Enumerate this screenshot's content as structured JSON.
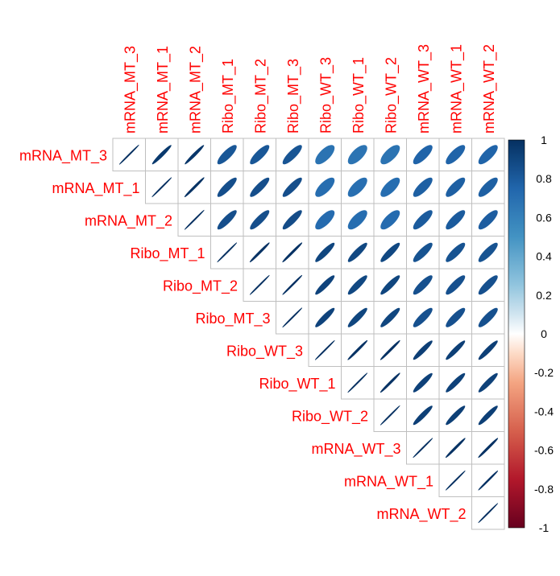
{
  "chart_data": {
    "type": "heatmap",
    "style": "ellipse correlation matrix (upper triangle)",
    "title": "",
    "variables": [
      "mRNA_MT_3",
      "mRNA_MT_1",
      "mRNA_MT_2",
      "Ribo_MT_1",
      "Ribo_MT_2",
      "Ribo_MT_3",
      "Ribo_WT_3",
      "Ribo_WT_1",
      "Ribo_WT_2",
      "mRNA_WT_3",
      "mRNA_WT_1",
      "mRNA_WT_2"
    ],
    "matrix": [
      [
        1.0,
        0.96,
        0.97,
        0.82,
        0.82,
        0.83,
        0.68,
        0.67,
        0.68,
        0.76,
        0.76,
        0.76
      ],
      [
        0.96,
        1.0,
        0.99,
        0.86,
        0.86,
        0.86,
        0.71,
        0.7,
        0.71,
        0.78,
        0.78,
        0.78
      ],
      [
        0.97,
        0.99,
        1.0,
        0.86,
        0.86,
        0.87,
        0.72,
        0.71,
        0.72,
        0.8,
        0.8,
        0.79
      ],
      [
        0.82,
        0.86,
        0.86,
        1.0,
        0.99,
        0.99,
        0.9,
        0.89,
        0.89,
        0.84,
        0.84,
        0.84
      ],
      [
        0.82,
        0.86,
        0.86,
        0.99,
        1.0,
        0.995,
        0.91,
        0.89,
        0.9,
        0.85,
        0.85,
        0.85
      ],
      [
        0.83,
        0.86,
        0.87,
        0.99,
        0.995,
        1.0,
        0.91,
        0.9,
        0.9,
        0.85,
        0.85,
        0.85
      ],
      [
        0.68,
        0.71,
        0.72,
        0.9,
        0.91,
        0.91,
        1.0,
        0.99,
        0.99,
        0.93,
        0.93,
        0.93
      ],
      [
        0.67,
        0.7,
        0.71,
        0.89,
        0.89,
        0.9,
        0.99,
        1.0,
        0.99,
        0.92,
        0.92,
        0.92
      ],
      [
        0.68,
        0.71,
        0.72,
        0.89,
        0.9,
        0.9,
        0.99,
        0.99,
        1.0,
        0.93,
        0.93,
        0.93
      ],
      [
        0.76,
        0.78,
        0.8,
        0.84,
        0.85,
        0.85,
        0.93,
        0.92,
        0.93,
        1.0,
        0.99,
        0.99
      ],
      [
        0.76,
        0.78,
        0.8,
        0.84,
        0.85,
        0.85,
        0.93,
        0.92,
        0.93,
        0.99,
        1.0,
        0.995
      ],
      [
        0.76,
        0.78,
        0.79,
        0.84,
        0.85,
        0.85,
        0.93,
        0.92,
        0.93,
        0.99,
        0.995,
        1.0
      ]
    ],
    "colorbar": {
      "range": [
        -1,
        1
      ],
      "ticks": [
        "1",
        "0.8",
        "0.6",
        "0.4",
        "0.2",
        "0",
        "-0.2",
        "-0.4",
        "-0.6",
        "-0.8",
        "-1"
      ]
    },
    "label_color": "#FF0000"
  }
}
